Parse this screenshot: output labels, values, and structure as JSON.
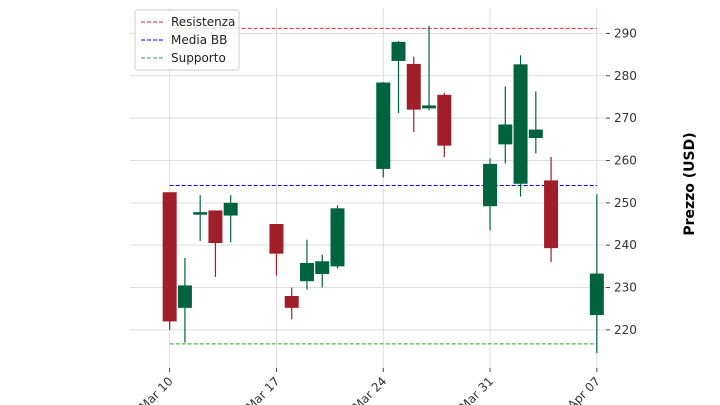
{
  "chart_data": {
    "type": "candlestick",
    "ylabel": "Prezzo (USD)",
    "ylim": [
      211,
      296
    ],
    "yticks": [
      220,
      230,
      240,
      250,
      260,
      270,
      280,
      290
    ],
    "y_axis_position": "right",
    "xlim": [
      "2025-03-10",
      "2025-04-07"
    ],
    "xticks": [
      {
        "date": "2025-03-10",
        "label": "Mar 10"
      },
      {
        "date": "2025-03-17",
        "label": "Mar 17"
      },
      {
        "date": "2025-03-24",
        "label": "Mar 24"
      },
      {
        "date": "2025-03-31",
        "label": "Mar 31"
      },
      {
        "date": "2025-04-07",
        "label": "Apr 07"
      }
    ],
    "grid": true,
    "legend_position": "top-left",
    "legend": [
      {
        "label": "Resistenza",
        "color": "#d62728",
        "style": "dashed"
      },
      {
        "label": "Media BB",
        "color": "#0000ff",
        "style": "dashed"
      },
      {
        "label": "Supporto",
        "color": "#2ca02c",
        "style": "dashed"
      }
    ],
    "colors": {
      "up": "#006340",
      "down": "#a01e28"
    },
    "hlines": {
      "resistenza": 291.2,
      "media_bb": 254.1,
      "supporto": 216.7
    },
    "candles": [
      {
        "date": "2025-03-10",
        "open": 252.5,
        "high": 252.5,
        "low": 220.0,
        "close": 222.0
      },
      {
        "date": "2025-03-11",
        "open": 225.2,
        "high": 237.0,
        "low": 217.0,
        "close": 230.5
      },
      {
        "date": "2025-03-12",
        "open": 247.2,
        "high": 251.8,
        "low": 241.0,
        "close": 247.8
      },
      {
        "date": "2025-03-13",
        "open": 248.2,
        "high": 248.2,
        "low": 232.5,
        "close": 240.5
      },
      {
        "date": "2025-03-14",
        "open": 247.0,
        "high": 251.8,
        "low": 240.7,
        "close": 250.0
      },
      {
        "date": "2025-03-17",
        "open": 245.0,
        "high": 245.0,
        "low": 232.8,
        "close": 238.0
      },
      {
        "date": "2025-03-18",
        "open": 228.0,
        "high": 230.0,
        "low": 222.5,
        "close": 225.2
      },
      {
        "date": "2025-03-19",
        "open": 231.5,
        "high": 241.3,
        "low": 229.5,
        "close": 235.8
      },
      {
        "date": "2025-03-20",
        "open": 233.2,
        "high": 237.8,
        "low": 230.0,
        "close": 236.2
      },
      {
        "date": "2025-03-21",
        "open": 235.0,
        "high": 249.4,
        "low": 234.5,
        "close": 248.7
      },
      {
        "date": "2025-03-24",
        "open": 258.0,
        "high": 278.5,
        "low": 256.0,
        "close": 278.4
      },
      {
        "date": "2025-03-25",
        "open": 283.5,
        "high": 288.2,
        "low": 271.2,
        "close": 288.0
      },
      {
        "date": "2025-03-26",
        "open": 282.8,
        "high": 284.5,
        "low": 266.7,
        "close": 272.0
      },
      {
        "date": "2025-03-27",
        "open": 272.3,
        "high": 291.8,
        "low": 271.9,
        "close": 273.0
      },
      {
        "date": "2025-03-28",
        "open": 275.5,
        "high": 276.0,
        "low": 260.8,
        "close": 263.5
      },
      {
        "date": "2025-03-31",
        "open": 249.2,
        "high": 260.5,
        "low": 243.5,
        "close": 259.2
      },
      {
        "date": "2025-04-01",
        "open": 263.8,
        "high": 277.5,
        "low": 259.3,
        "close": 268.5
      },
      {
        "date": "2025-04-02",
        "open": 254.5,
        "high": 284.8,
        "low": 251.5,
        "close": 282.7
      },
      {
        "date": "2025-04-03",
        "open": 265.3,
        "high": 276.3,
        "low": 261.7,
        "close": 267.3
      },
      {
        "date": "2025-04-04",
        "open": 255.3,
        "high": 260.8,
        "low": 236.0,
        "close": 239.3
      },
      {
        "date": "2025-04-07",
        "open": 223.5,
        "high": 252.0,
        "low": 214.5,
        "close": 233.3
      }
    ]
  }
}
